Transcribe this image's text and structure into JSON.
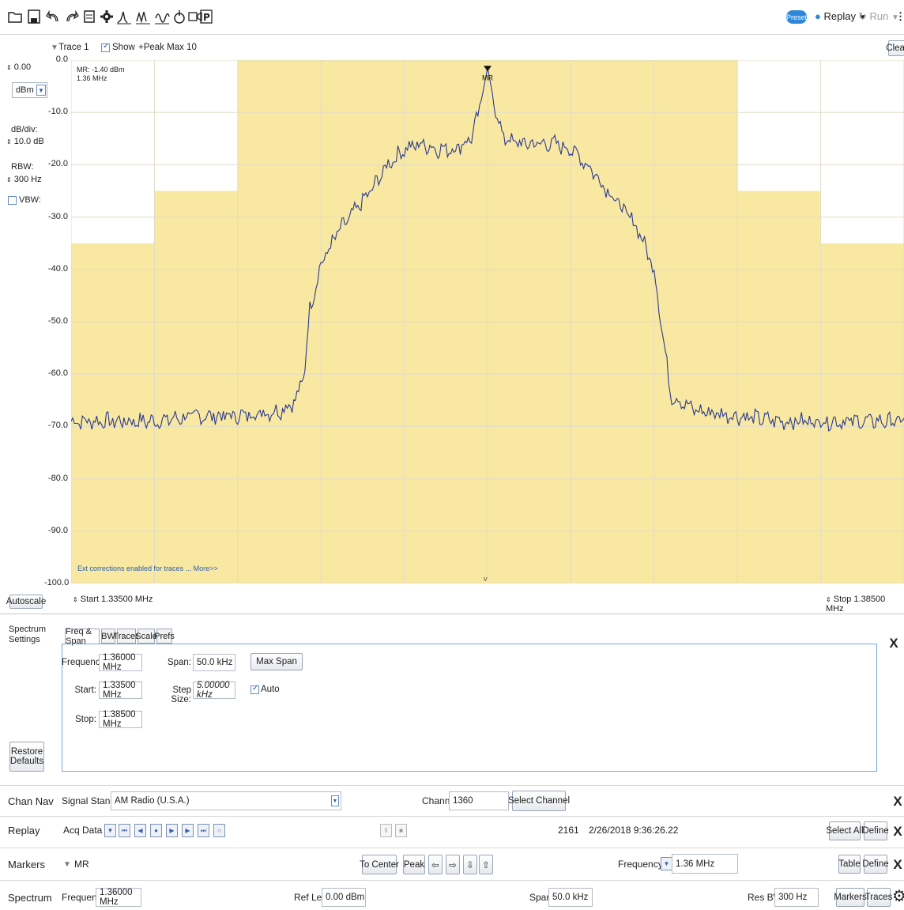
{
  "toolbar": {
    "preset_label": "Preset",
    "replay_label": "Replay",
    "run_label": "Run"
  },
  "trace": {
    "name": "Trace 1",
    "show_label": "Show",
    "detection": "+Peak Max 10",
    "clear_label": "Clear"
  },
  "left_panel": {
    "ref_level": "0.00",
    "unit": "dBm",
    "dbdiv_label": "dB/div:",
    "dbdiv_value": "10.0 dB",
    "rbw_label": "RBW:",
    "rbw_value": "300 Hz",
    "vbw_label": "VBW:",
    "autoscale_label": "Autoscale"
  },
  "graph": {
    "marker_readout_1": "MR: -1.40 dBm",
    "marker_readout_2": "1.36 MHz",
    "marker_label": "MR",
    "ext_corrections": "Ext corrections enabled for traces ... More>>",
    "start_label": "Start  1.33500 MHz",
    "stop_label": "Stop  1.38500 MHz",
    "y_ticks": [
      "0.0",
      "-10.0",
      "-20.0",
      "-30.0",
      "-40.0",
      "-50.0",
      "-60.0",
      "-70.0",
      "-80.0",
      "-90.0",
      "-100.0"
    ]
  },
  "chart_data": {
    "type": "line",
    "xlabel": "",
    "ylabel": "",
    "x_range_mhz": [
      1.335,
      1.385
    ],
    "ylim": [
      -100,
      0
    ],
    "series": [
      {
        "x": [
          1.335,
          1.3375,
          1.34,
          1.3425,
          1.345,
          1.3475,
          1.3485,
          1.349,
          1.3493,
          1.35,
          1.351,
          1.352,
          1.353,
          1.354,
          1.355,
          1.356,
          1.357,
          1.358,
          1.359,
          1.3595,
          1.36,
          1.3605,
          1.361,
          1.362,
          1.363,
          1.364,
          1.365,
          1.366,
          1.367,
          1.368,
          1.369,
          1.37,
          1.3705,
          1.371,
          1.3725,
          1.375,
          1.3775,
          1.38,
          1.3825,
          1.385
        ],
        "y": [
          -69,
          -69,
          -69,
          -68,
          -68,
          -67,
          -65,
          -60,
          -48,
          -39,
          -33,
          -29,
          -25,
          -20,
          -17,
          -16,
          -17,
          -17,
          -15,
          -10,
          -1.4,
          -10,
          -15,
          -16,
          -16,
          -16,
          -17,
          -20,
          -24,
          -28,
          -32,
          -40,
          -52,
          -64,
          -67,
          -68,
          -69,
          -69,
          -69,
          -69
        ]
      }
    ],
    "mask_segments": [
      {
        "x_start": 1.335,
        "x_end": 1.34,
        "level": -35
      },
      {
        "x_start": 1.34,
        "x_end": 1.345,
        "level": -25
      },
      {
        "x_start": 1.345,
        "x_end": 1.375,
        "level": 0
      },
      {
        "x_start": 1.375,
        "x_end": 1.38,
        "level": -25
      },
      {
        "x_start": 1.38,
        "x_end": 1.385,
        "level": -35
      }
    ],
    "grid": true
  },
  "settings": {
    "panel_title": "Spectrum Settings",
    "restore_label": "Restore Defaults",
    "tabs": [
      "Freq & Span",
      "BW",
      "Traces",
      "Scale",
      "Prefs"
    ],
    "frequency_label": "Frequency:",
    "frequency_value": "1.36000 MHz",
    "span_label": "Span:",
    "span_value": "50.0 kHz",
    "max_span_label": "Max Span",
    "start_label": "Start:",
    "start_value": "1.33500 MHz",
    "step_label": "Step Size:",
    "step_value": "5.00000 kHz",
    "auto_label": "Auto",
    "stop_label": "Stop:",
    "stop_value": "1.38500 MHz"
  },
  "chan_nav": {
    "label": "Chan Nav",
    "signal_label": "Signal Standard",
    "signal_value": "AM Radio (U.S.A.)",
    "channel_label": "Channel",
    "channel_value": "1360",
    "select_channel_label": "Select Channel"
  },
  "replay": {
    "label": "Replay",
    "acq_label": "Acq Data",
    "count": "2161",
    "timestamp": "2/26/2018 9:36:26.22",
    "select_all_label": "Select All",
    "define_label": "Define"
  },
  "markers": {
    "label": "Markers",
    "marker_name": "MR",
    "to_center_label": "To Center",
    "peak_label": "Peak",
    "freq_type": "Frequency",
    "freq_value": "1.36 MHz",
    "table_label": "Table",
    "define_label": "Define"
  },
  "spectrum_bar": {
    "label": "Spectrum",
    "frequency_label": "Frequency",
    "frequency_value": "1.36000 MHz",
    "ref_lev_label": "Ref Lev",
    "ref_lev_value": "0.00 dBm",
    "span_label": "Span",
    "span_value": "50.0 kHz",
    "res_bw_label": "Res BW",
    "res_bw_value": "300 Hz",
    "markers_label": "Markers",
    "traces_label": "Traces"
  }
}
